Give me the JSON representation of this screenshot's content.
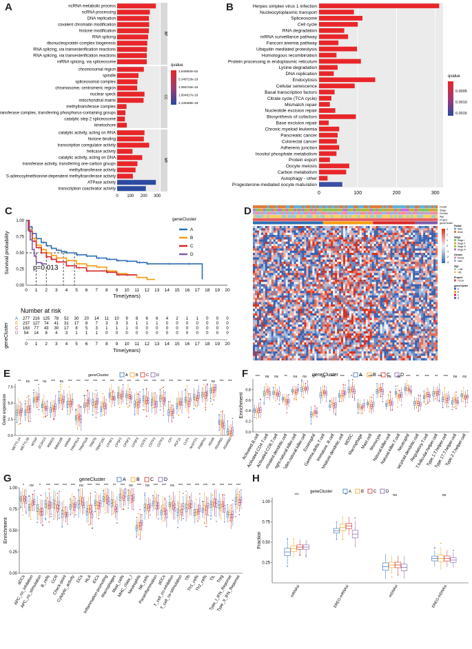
{
  "panel_labels": {
    "a": "A",
    "b": "B",
    "c": "C",
    "d": "D",
    "e": "E",
    "f": "F",
    "g": "G",
    "h": "H"
  },
  "colors": {
    "bar": "#e8262a",
    "bar_dark": "#2b4aa0",
    "A": "#2f6db5",
    "B": "#f39c12",
    "C": "#d62728",
    "D": "#7d5ba6",
    "heat_high": "#d7301f",
    "heat_low": "#3a62b0"
  },
  "chart_data": [
    {
      "id": "A",
      "type": "bar",
      "orientation": "horizontal",
      "facets": [
        {
          "name": "BP",
          "categories": [
            "ncRNA metabolic process",
            "ncRNA processing",
            "DNA replication",
            "covalent chromatin modification",
            "histone modification",
            "RNA splicing",
            "ribonucleoprotein complex biogenesis",
            "RNA splicing, via transesterification reactions",
            "RNA splicing, via transesterification reactions",
            "mRNA splicing, via spliceosome"
          ],
          "values": [
            290,
            245,
            238,
            240,
            238,
            232,
            226,
            224,
            222,
            222
          ],
          "qcolor": [
            "#e8262a",
            "#e8262a",
            "#e8262a",
            "#e8262a",
            "#e8262a",
            "#e8262a",
            "#e8262a",
            "#e8262a",
            "#e8262a",
            "#e8262a"
          ]
        },
        {
          "name": "CC",
          "categories": [
            "chromosomal region",
            "spindle",
            "spliceosomal complex",
            "chromosome, centromeric region",
            "nuclear speck",
            "mitochondrial matrix",
            "methyltransferase complex",
            "transferase complex, transferring phosphorus-containing groups",
            "catalytic step 2 spliceosome",
            "kinetochore"
          ],
          "values": [
            200,
            160,
            152,
            150,
            205,
            198,
            70,
            62,
            58,
            72
          ],
          "qcolor": [
            "#e8262a",
            "#e8262a",
            "#e8262a",
            "#e8262a",
            "#e8262a",
            "#e8262a",
            "#e8262a",
            "#e8262a",
            "#e8262a",
            "#e8262a"
          ]
        },
        {
          "name": "MF",
          "categories": [
            "catalytic activity, acting on RNA",
            "histone binding",
            "transcription coregulator activity",
            "helicase activity",
            "catalytic activity, acting on DNA",
            "transferase activity, transferring one-carbon groups",
            "methyltransferase activity",
            "S-adenosylmethionine-dependent methyltransferase activity",
            "ATPase activity",
            "transcription coactivator activity"
          ],
          "values": [
            205,
            200,
            240,
            115,
            188,
            152,
            138,
            118,
            290,
            215
          ],
          "qcolor": [
            "#e8262a",
            "#e8262a",
            "#e8262a",
            "#e8262a",
            "#e8262a",
            "#e8262a",
            "#e8262a",
            "#e8262a",
            "#2b4aa0",
            "#2b4aa0"
          ]
        }
      ],
      "xticks": [
        0,
        100,
        200,
        300
      ],
      "xlim": [
        0,
        320
      ],
      "legend_title": "qvalue",
      "legend_labels": [
        "2.846900e-52",
        "5.348723e-19",
        "1.069745e-18",
        "1.604817e-18",
        "2.139489e-18"
      ]
    },
    {
      "id": "B",
      "type": "bar",
      "orientation": "horizontal",
      "categories": [
        "Herpes simplex virus 1 infection",
        "Nucleocytoplasmic transport",
        "Spliceosome",
        "Cell cycle",
        "RNA degradation",
        "mRNA surveillance pathway",
        "Fanconi anemia pathway",
        "Ubiquitin mediated proteolysis",
        "Homologous recombination",
        "Protein processing in endoplasmic reticulum",
        "Lysine degradation",
        "DNA replication",
        "Endocytosis",
        "Cellular senescence",
        "Basal transcription factors",
        "Citrate cycle (TCA cycle)",
        "Mismatch repair",
        "Nucleotide excision repair",
        "Biosynthesis of cofactors",
        "Base excision repair",
        "Chronic myeloid leukemia",
        "Pancreatic cancer",
        "Colorectal cancer",
        "Adherens junction",
        "Inositol phosphate metabolism",
        "Protein export",
        "Oocyte meiosis",
        "Carbon metabolism",
        "Autophagy - other",
        "Progesterone-mediated oocyte maturation"
      ],
      "values": [
        310,
        90,
        112,
        100,
        65,
        75,
        50,
        98,
        45,
        108,
        48,
        38,
        145,
        92,
        40,
        32,
        28,
        42,
        95,
        25,
        52,
        48,
        46,
        52,
        45,
        28,
        78,
        70,
        22,
        60
      ],
      "qcolor": [
        "#e8262a",
        "#e8262a",
        "#e8262a",
        "#e8262a",
        "#e8262a",
        "#e8262a",
        "#e8262a",
        "#e8262a",
        "#e8262a",
        "#e8262a",
        "#e8262a",
        "#e8262a",
        "#e8262a",
        "#e8262a",
        "#e8262a",
        "#e8262a",
        "#e8262a",
        "#e8262a",
        "#e8262a",
        "#e8262a",
        "#e8262a",
        "#e8262a",
        "#e8262a",
        "#e8262a",
        "#e8262a",
        "#e8262a",
        "#e8262a",
        "#e8262a",
        "#e8262a",
        "#3a4fa5"
      ],
      "xticks": [
        0,
        100,
        200,
        300
      ],
      "xlim": [
        0,
        320
      ],
      "legend_title": "qvalue",
      "legend_labels": [
        "0.0005",
        "0.0010",
        "0.0015"
      ]
    },
    {
      "id": "C",
      "type": "line",
      "subtype": "kaplan-meier",
      "ylabel": "Survival probability",
      "xlabel": "Time(years)",
      "pvalue": "p=0.013",
      "legend_title": "geneCluster",
      "groups": [
        "A",
        "B",
        "C",
        "D"
      ],
      "yticks": [
        0,
        0.25,
        0.5,
        0.75,
        1
      ],
      "ytick_labels": [
        "0.00",
        "0.25",
        "0.50",
        "0.75",
        "1.00"
      ],
      "xticks": [
        0,
        1,
        2,
        3,
        4,
        5,
        6,
        7,
        8,
        9,
        10,
        11,
        12,
        13,
        14,
        15,
        16,
        17,
        18,
        19,
        20
      ],
      "xlim": [
        0,
        20
      ],
      "series": [
        {
          "name": "A",
          "x": [
            0,
            0.3,
            0.6,
            1,
            1.5,
            2,
            2.5,
            3,
            3.5,
            4,
            5,
            6,
            7,
            8,
            9,
            10,
            11,
            12,
            14,
            16,
            17.5
          ],
          "y": [
            1,
            0.9,
            0.8,
            0.72,
            0.66,
            0.61,
            0.57,
            0.54,
            0.52,
            0.5,
            0.47,
            0.45,
            0.42,
            0.4,
            0.38,
            0.37,
            0.35,
            0.33,
            0.33,
            0.33,
            0.09
          ]
        },
        {
          "name": "B",
          "x": [
            0,
            0.3,
            0.6,
            1,
            1.5,
            2,
            2.5,
            3,
            4,
            5,
            6,
            7,
            8,
            9,
            10,
            11,
            12,
            12.8
          ],
          "y": [
            1,
            0.86,
            0.72,
            0.62,
            0.55,
            0.5,
            0.46,
            0.42,
            0.38,
            0.33,
            0.3,
            0.28,
            0.22,
            0.18,
            0.16,
            0.12,
            0.09,
            0.09
          ]
        },
        {
          "name": "C",
          "x": [
            0,
            0.3,
            0.6,
            1,
            1.5,
            2,
            2.5,
            3,
            4,
            5,
            6,
            8,
            9,
            10,
            11
          ],
          "y": [
            1,
            0.83,
            0.68,
            0.58,
            0.5,
            0.44,
            0.4,
            0.36,
            0.3,
            0.27,
            0.22,
            0.2,
            0.16,
            0.16,
            0.16
          ]
        },
        {
          "name": "D",
          "x": [
            0,
            0.2,
            0.4,
            0.6,
            0.8,
            1,
            1.5,
            2
          ],
          "y": [
            1,
            0.85,
            0.7,
            0.55,
            0.45,
            0.35,
            0.33,
            0.33
          ]
        }
      ],
      "risk_title": "Number at risk",
      "risk_ylabel": "geneCluster",
      "risk": {
        "A": [
          277,
          216,
          125,
          78,
          52,
          30,
          20,
          14,
          11,
          10,
          9,
          8,
          6,
          6,
          4,
          2,
          1,
          1,
          0,
          0,
          0
        ],
        "B": [
          237,
          127,
          74,
          41,
          31,
          17,
          8,
          7,
          3,
          3,
          3,
          1,
          1,
          1,
          0,
          0,
          0,
          0,
          0,
          0,
          0
        ],
        "C": [
          163,
          77,
          43,
          30,
          17,
          8,
          5,
          3,
          1,
          1,
          1,
          0,
          0,
          0,
          0,
          0,
          0,
          0,
          0,
          0,
          0
        ],
        "D": [
          54,
          14,
          8,
          4,
          3,
          1,
          1,
          1,
          0,
          0,
          0,
          0,
          0,
          0,
          0,
          0,
          0,
          0,
          0,
          0,
          0
        ]
      }
    },
    {
      "id": "D",
      "type": "heatmap",
      "annotation_labels": [
        "Fustat",
        "Stage",
        "Gender",
        "Age",
        "Project",
        "geneCluster"
      ],
      "legend_items": [
        "Fustat",
        "Alive",
        "Dead",
        "Stage",
        "Stage I",
        "Stage II",
        "Stage III",
        "Stage IV",
        "Gender",
        "female",
        "male",
        "Age",
        "<=65",
        ">65",
        "Project",
        "TCGA",
        "geneCluster",
        "A",
        "B",
        "C",
        "D"
      ],
      "scale": [
        "3",
        "2",
        "1",
        "0",
        "-1",
        "-2",
        "-3"
      ]
    },
    {
      "id": "E",
      "type": "box",
      "ylabel": "Gene expression",
      "legend_title": "geneCluster",
      "groups": [
        "A",
        "B",
        "C",
        "D"
      ],
      "ylim": [
        0,
        8
      ],
      "yticks": [
        0.0,
        2.5,
        5.0,
        7.5
      ],
      "ytick_labels": [
        "0.0",
        "2.5",
        "5.0",
        "7.5"
      ],
      "categories": [
        "METTL14",
        "METTL16",
        "WTAP",
        "ZC3H13",
        "RBM15",
        "RBM15B",
        "VIRMA",
        "TRMT61A",
        "TRMT61B",
        "TRMT6",
        "TRMT10C",
        "CPSF1",
        "CPSF2",
        "CPSF3",
        "CPSF4",
        "CSTF1",
        "CSTF2",
        "CSTF3",
        "CFI",
        "PCF11",
        "CLP1",
        "NUDT21",
        "PABPN1",
        "ADAR",
        "ADARB1",
        "ADARB2"
      ],
      "medians": [
        3.6,
        3.8,
        5.6,
        4.4,
        4.3,
        5.5,
        5.1,
        2.6,
        4.9,
        5.0,
        4.4,
        5.9,
        6.0,
        5.8,
        4.9,
        5.5,
        5.2,
        5.6,
        3.8,
        5.0,
        5.2,
        5.9,
        6.6,
        7.0,
        1.8,
        0.6
      ],
      "signif": [
        "**",
        "ns",
        "***",
        "ns",
        "***",
        "ns",
        "***",
        "***",
        "***",
        "***",
        "**",
        "***",
        "***",
        "***",
        "***",
        "***",
        "***",
        "***",
        "***",
        "***",
        "***",
        "***",
        "***",
        "ns",
        "***",
        "***"
      ]
    },
    {
      "id": "F",
      "type": "box",
      "ylabel": "Enrichment",
      "legend_title": "geneCluster",
      "groups": [
        "A",
        "B",
        "C",
        "D"
      ],
      "ylim": [
        0,
        1
      ],
      "yticks": [
        0.0,
        0.2,
        0.4,
        0.6,
        0.8
      ],
      "ytick_labels": [
        "0.0",
        "0.2",
        "0.4",
        "0.6",
        "0.8"
      ],
      "categories": [
        "Activated.B.cell",
        "Activated.CD4.T.cell",
        "Activated.CD8.T.cell",
        "Activated.dendritic.cell",
        "CD56bright.natural.killer.cell",
        "CD56dim.natural.killer.cell",
        "Eosinophil",
        "Gamma.delta.T.cell",
        "Immature..B.cell",
        "Immature.dendritic.cell",
        "MDSC",
        "Macrophage",
        "Mast.cell",
        "Monocyte",
        "Natural.killer.cell",
        "Natural.killer.T.cell",
        "Neutrophil",
        "Plasmacytoid.dendritic.cell",
        "Regulatory.T.cell",
        "T.follicular.helper.cell",
        "Type.1.T.helper.cell",
        "Type.17.T.helper.cell",
        "Type.2.T.helper.cell"
      ],
      "medians": [
        0.4,
        0.75,
        0.73,
        0.6,
        0.78,
        0.8,
        0.35,
        0.72,
        0.52,
        0.7,
        0.78,
        0.48,
        0.5,
        0.78,
        0.55,
        0.7,
        0.78,
        0.52,
        0.68,
        0.72,
        0.62,
        0.58,
        0.68
      ],
      "signif": [
        "***",
        "ns",
        "ns",
        "**",
        "ns",
        "ns",
        "***",
        "ns",
        "***",
        "***",
        "*",
        "**",
        "***",
        "***",
        "ns",
        "ns",
        "***",
        "**",
        "***",
        "**",
        "***",
        "ns",
        "ns"
      ]
    },
    {
      "id": "G",
      "type": "box",
      "ylabel": "Enrichment",
      "legend_title": "geneCluster",
      "groups": [
        "A",
        "B",
        "C",
        "D"
      ],
      "ylim": [
        0,
        1
      ],
      "yticks": [
        0.0,
        0.25,
        0.5,
        0.75,
        1.0
      ],
      "ytick_labels": [
        "0.00",
        "0.25",
        "0.50",
        "0.75",
        "1.00"
      ],
      "categories": [
        "aDCs",
        "APC_co_inhibition",
        "APC_co_stimulation",
        "B_cells",
        "CCR",
        "Check-point",
        "Cytolytic_activity",
        "DCs",
        "HLA",
        "iDCs",
        "Inflammation-promoting",
        "Macrophages",
        "Mast_cells",
        "MHC_class_I",
        "Neutrophils",
        "NK_cells",
        "Parainflammation",
        "pDCs",
        "T_cell_co-inhibition",
        "T_cell_co-stimulation",
        "Tfh",
        "Th1_cells",
        "Th2_cells",
        "TIL",
        "Treg",
        "Type_I_IFN_Reponse",
        "Type_II_IFN_Reponse"
      ],
      "medians": [
        0.85,
        0.8,
        0.75,
        0.78,
        0.8,
        0.72,
        0.8,
        0.82,
        0.72,
        0.8,
        0.85,
        0.78,
        0.92,
        0.9,
        0.55,
        0.75,
        0.82,
        0.72,
        0.8,
        0.75,
        0.78,
        0.72,
        0.75,
        0.82,
        0.78,
        0.7,
        0.85
      ],
      "signif": [
        "*",
        "ns",
        "*",
        "***",
        "***",
        "***",
        "***",
        "ns",
        "***",
        "***",
        "***",
        "**",
        "***",
        "ns",
        "***",
        "ns",
        "***",
        "***",
        "ns",
        "***",
        "***",
        "***",
        "***",
        "**",
        "***",
        "***",
        "***"
      ]
    },
    {
      "id": "H",
      "type": "box",
      "ylabel": "Fraction",
      "legend_title": "geneCluster",
      "groups": [
        "A",
        "B",
        "C",
        "D"
      ],
      "ylim": [
        0,
        1.05
      ],
      "yticks": [
        0.25,
        0.5,
        0.75,
        1.0
      ],
      "ytick_labels": [
        "0.25",
        "0.50",
        "0.75",
        "1.00"
      ],
      "categories": [
        "mRNAsi",
        "EREG-mRNAsi",
        "mDNAsi",
        "EREG-mDNAsi"
      ],
      "medians": [
        [
          0.38,
          0.42,
          0.44,
          0.44
        ],
        [
          0.64,
          0.68,
          0.7,
          0.6
        ],
        [
          0.2,
          0.22,
          0.22,
          0.19
        ],
        [
          0.3,
          0.3,
          0.3,
          0.28
        ]
      ],
      "signif": [
        "***",
        "*",
        "ns",
        "ns"
      ]
    }
  ]
}
